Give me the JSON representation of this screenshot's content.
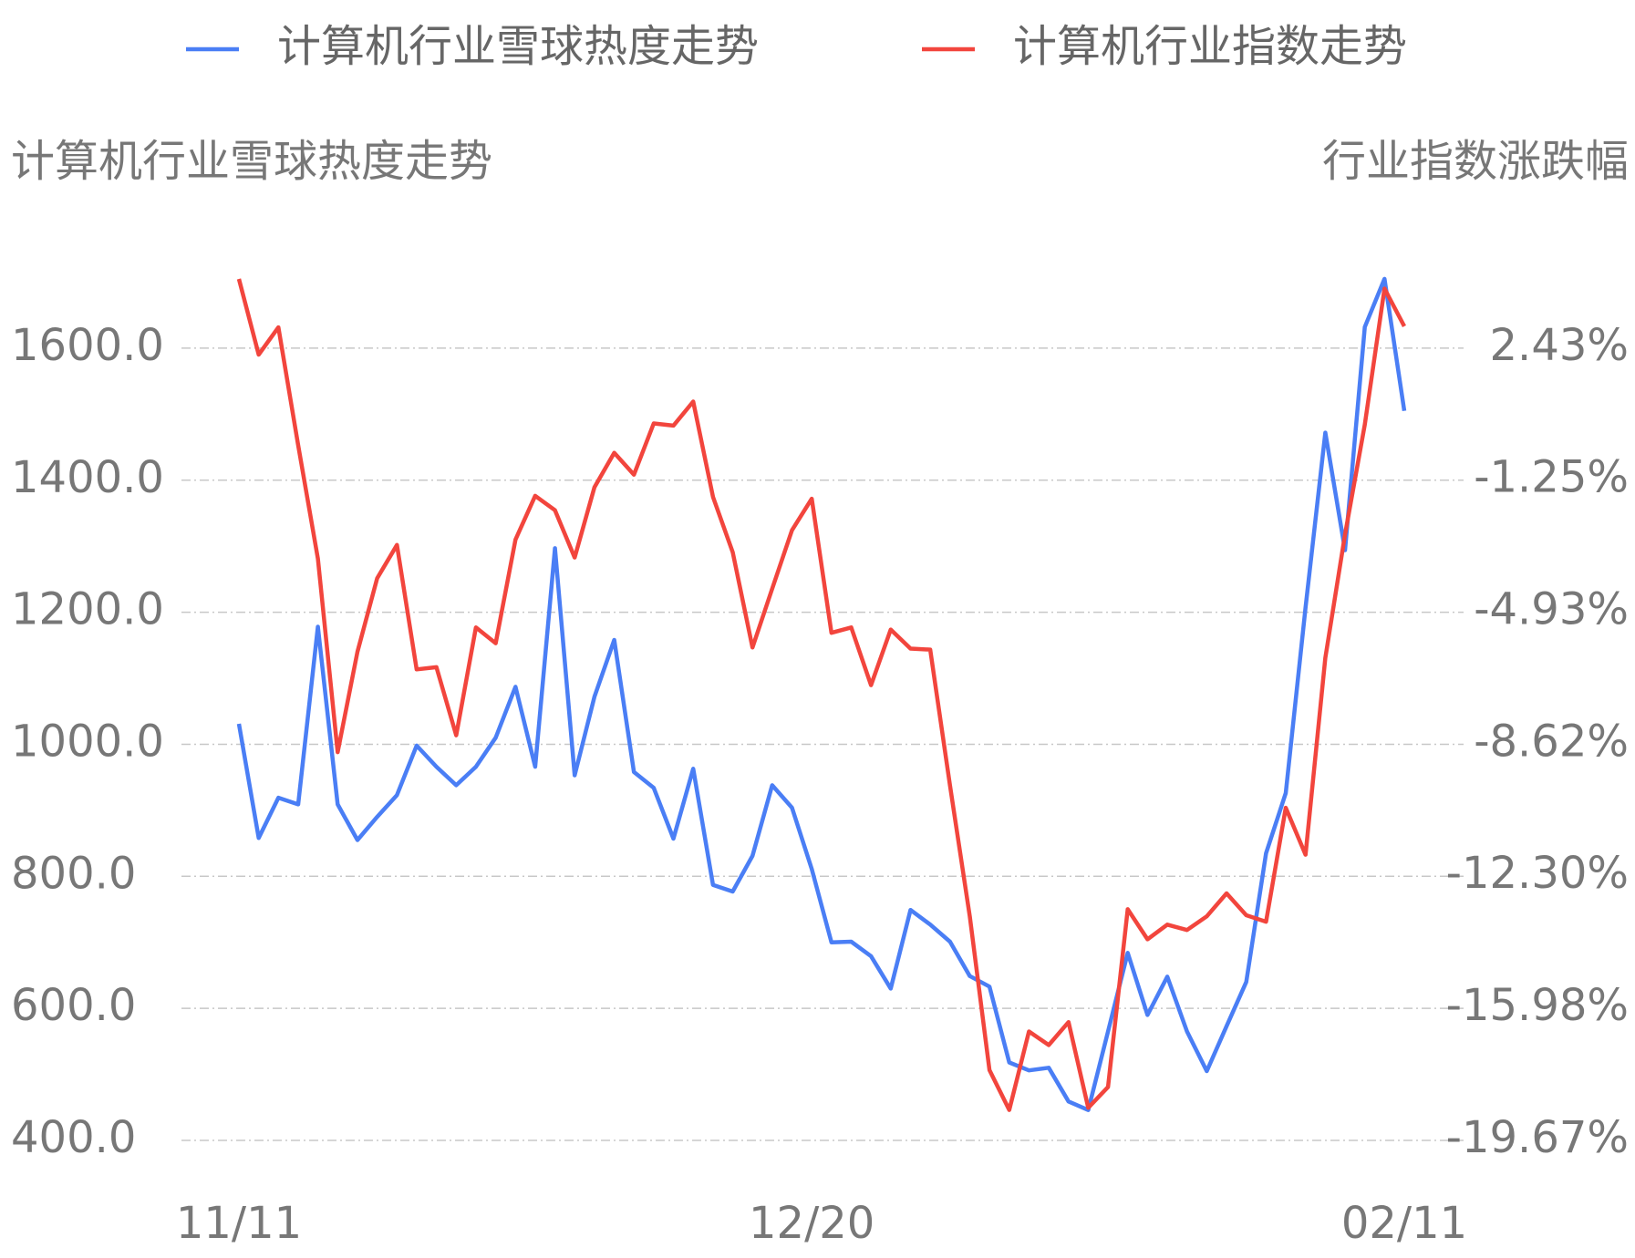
{
  "chart_data": {
    "type": "line",
    "y_label": "计算机行业雪球热度走势",
    "y2_label": "行业指数涨跌幅",
    "categories": [
      "11/11",
      null,
      null,
      null,
      null,
      null,
      null,
      null,
      null,
      null,
      null,
      null,
      null,
      null,
      null,
      null,
      null,
      null,
      null,
      null,
      null,
      null,
      null,
      null,
      null,
      null,
      null,
      null,
      null,
      "12/20",
      null,
      null,
      null,
      null,
      null,
      null,
      null,
      null,
      null,
      null,
      null,
      null,
      null,
      null,
      null,
      null,
      null,
      null,
      null,
      null,
      null,
      null,
      null,
      null,
      null,
      null,
      null,
      null,
      null,
      "02/11"
    ],
    "series": [
      {
        "name": "计算机行业雪球热度走势",
        "color": "#4a7ef5",
        "axis": "y",
        "values": [
          1031,
          858,
          919,
          909,
          1178,
          909,
          855,
          890,
          923,
          998,
          966,
          938,
          966,
          1010,
          1087,
          966,
          1297,
          953,
          1072,
          1158,
          958,
          934,
          857,
          963,
          787,
          777,
          831,
          938,
          904,
          811,
          700,
          701,
          679,
          630,
          749,
          727,
          701,
          649,
          633,
          518,
          506,
          510,
          459,
          446,
          565,
          684,
          590,
          648,
          565,
          505,
          573,
          640,
          835,
          926,
          1207,
          1472,
          1294,
          1632,
          1705,
          1505
        ]
      },
      {
        "name": "计算机行业指数走势",
        "color": "#f2453d",
        "axis": "y2",
        "values": [
          4.36,
          2.25,
          3.01,
          -0.28,
          -3.44,
          -8.84,
          -6.04,
          -3.99,
          -3.06,
          -6.53,
          -6.47,
          -8.37,
          -5.36,
          -5.8,
          -2.91,
          -1.69,
          -2.09,
          -3.41,
          -1.45,
          -0.49,
          -1.1,
          0.33,
          0.27,
          0.94,
          -1.72,
          -3.26,
          -5.92,
          -4.28,
          -2.65,
          -1.77,
          -5.51,
          -5.36,
          -6.97,
          -5.42,
          -5.95,
          -5.98,
          -9.77,
          -13.42,
          -17.71,
          -18.82,
          -16.63,
          -17.01,
          -16.37,
          -18.76,
          -18.18,
          -13.22,
          -14.06,
          -13.65,
          -13.8,
          -13.42,
          -12.78,
          -13.39,
          -13.57,
          -10.39,
          -11.7,
          -6.21,
          -2.77,
          0.3,
          4.09,
          3.04
        ]
      }
    ],
    "ylim": [
      400,
      1720
    ],
    "yticks": [
      {
        "value": 400,
        "label": "400.0"
      },
      {
        "value": 600,
        "label": "600.0"
      },
      {
        "value": 800,
        "label": "800.0"
      },
      {
        "value": 1000,
        "label": "1000.0"
      },
      {
        "value": 1200,
        "label": "1200.0"
      },
      {
        "value": 1400,
        "label": "1400.0"
      },
      {
        "value": 1600,
        "label": "1600.0"
      }
    ],
    "y2lim": [
      -19.67,
      4.64
    ],
    "y2ticks": [
      {
        "value": -19.67,
        "label": "-19.67%"
      },
      {
        "value": -15.98,
        "label": "-15.98%"
      },
      {
        "value": -12.3,
        "label": "-12.30%"
      },
      {
        "value": -8.62,
        "label": "-8.62%"
      },
      {
        "value": -4.93,
        "label": "-4.93%"
      },
      {
        "value": -1.25,
        "label": "-1.25%"
      },
      {
        "value": 2.43,
        "label": "2.43%"
      }
    ],
    "grid": true,
    "legend": "top"
  }
}
